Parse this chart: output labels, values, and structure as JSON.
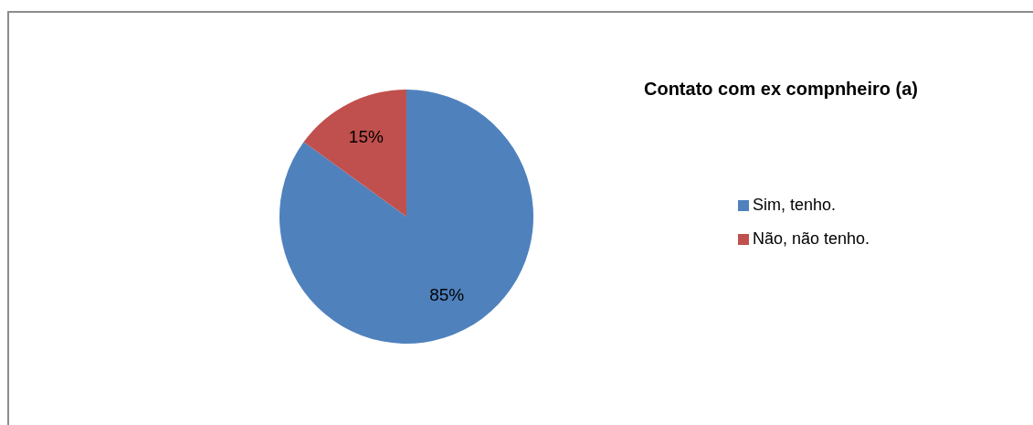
{
  "chart_data": {
    "type": "pie",
    "title": "Contato com ex compnheiro (a)",
    "categories": [
      "Sim, tenho.",
      "Não, não tenho."
    ],
    "values": [
      85,
      15
    ],
    "colors": [
      "#4f81bd",
      "#c0504d"
    ],
    "value_labels": [
      "85%",
      "15%"
    ],
    "legend": "right"
  }
}
